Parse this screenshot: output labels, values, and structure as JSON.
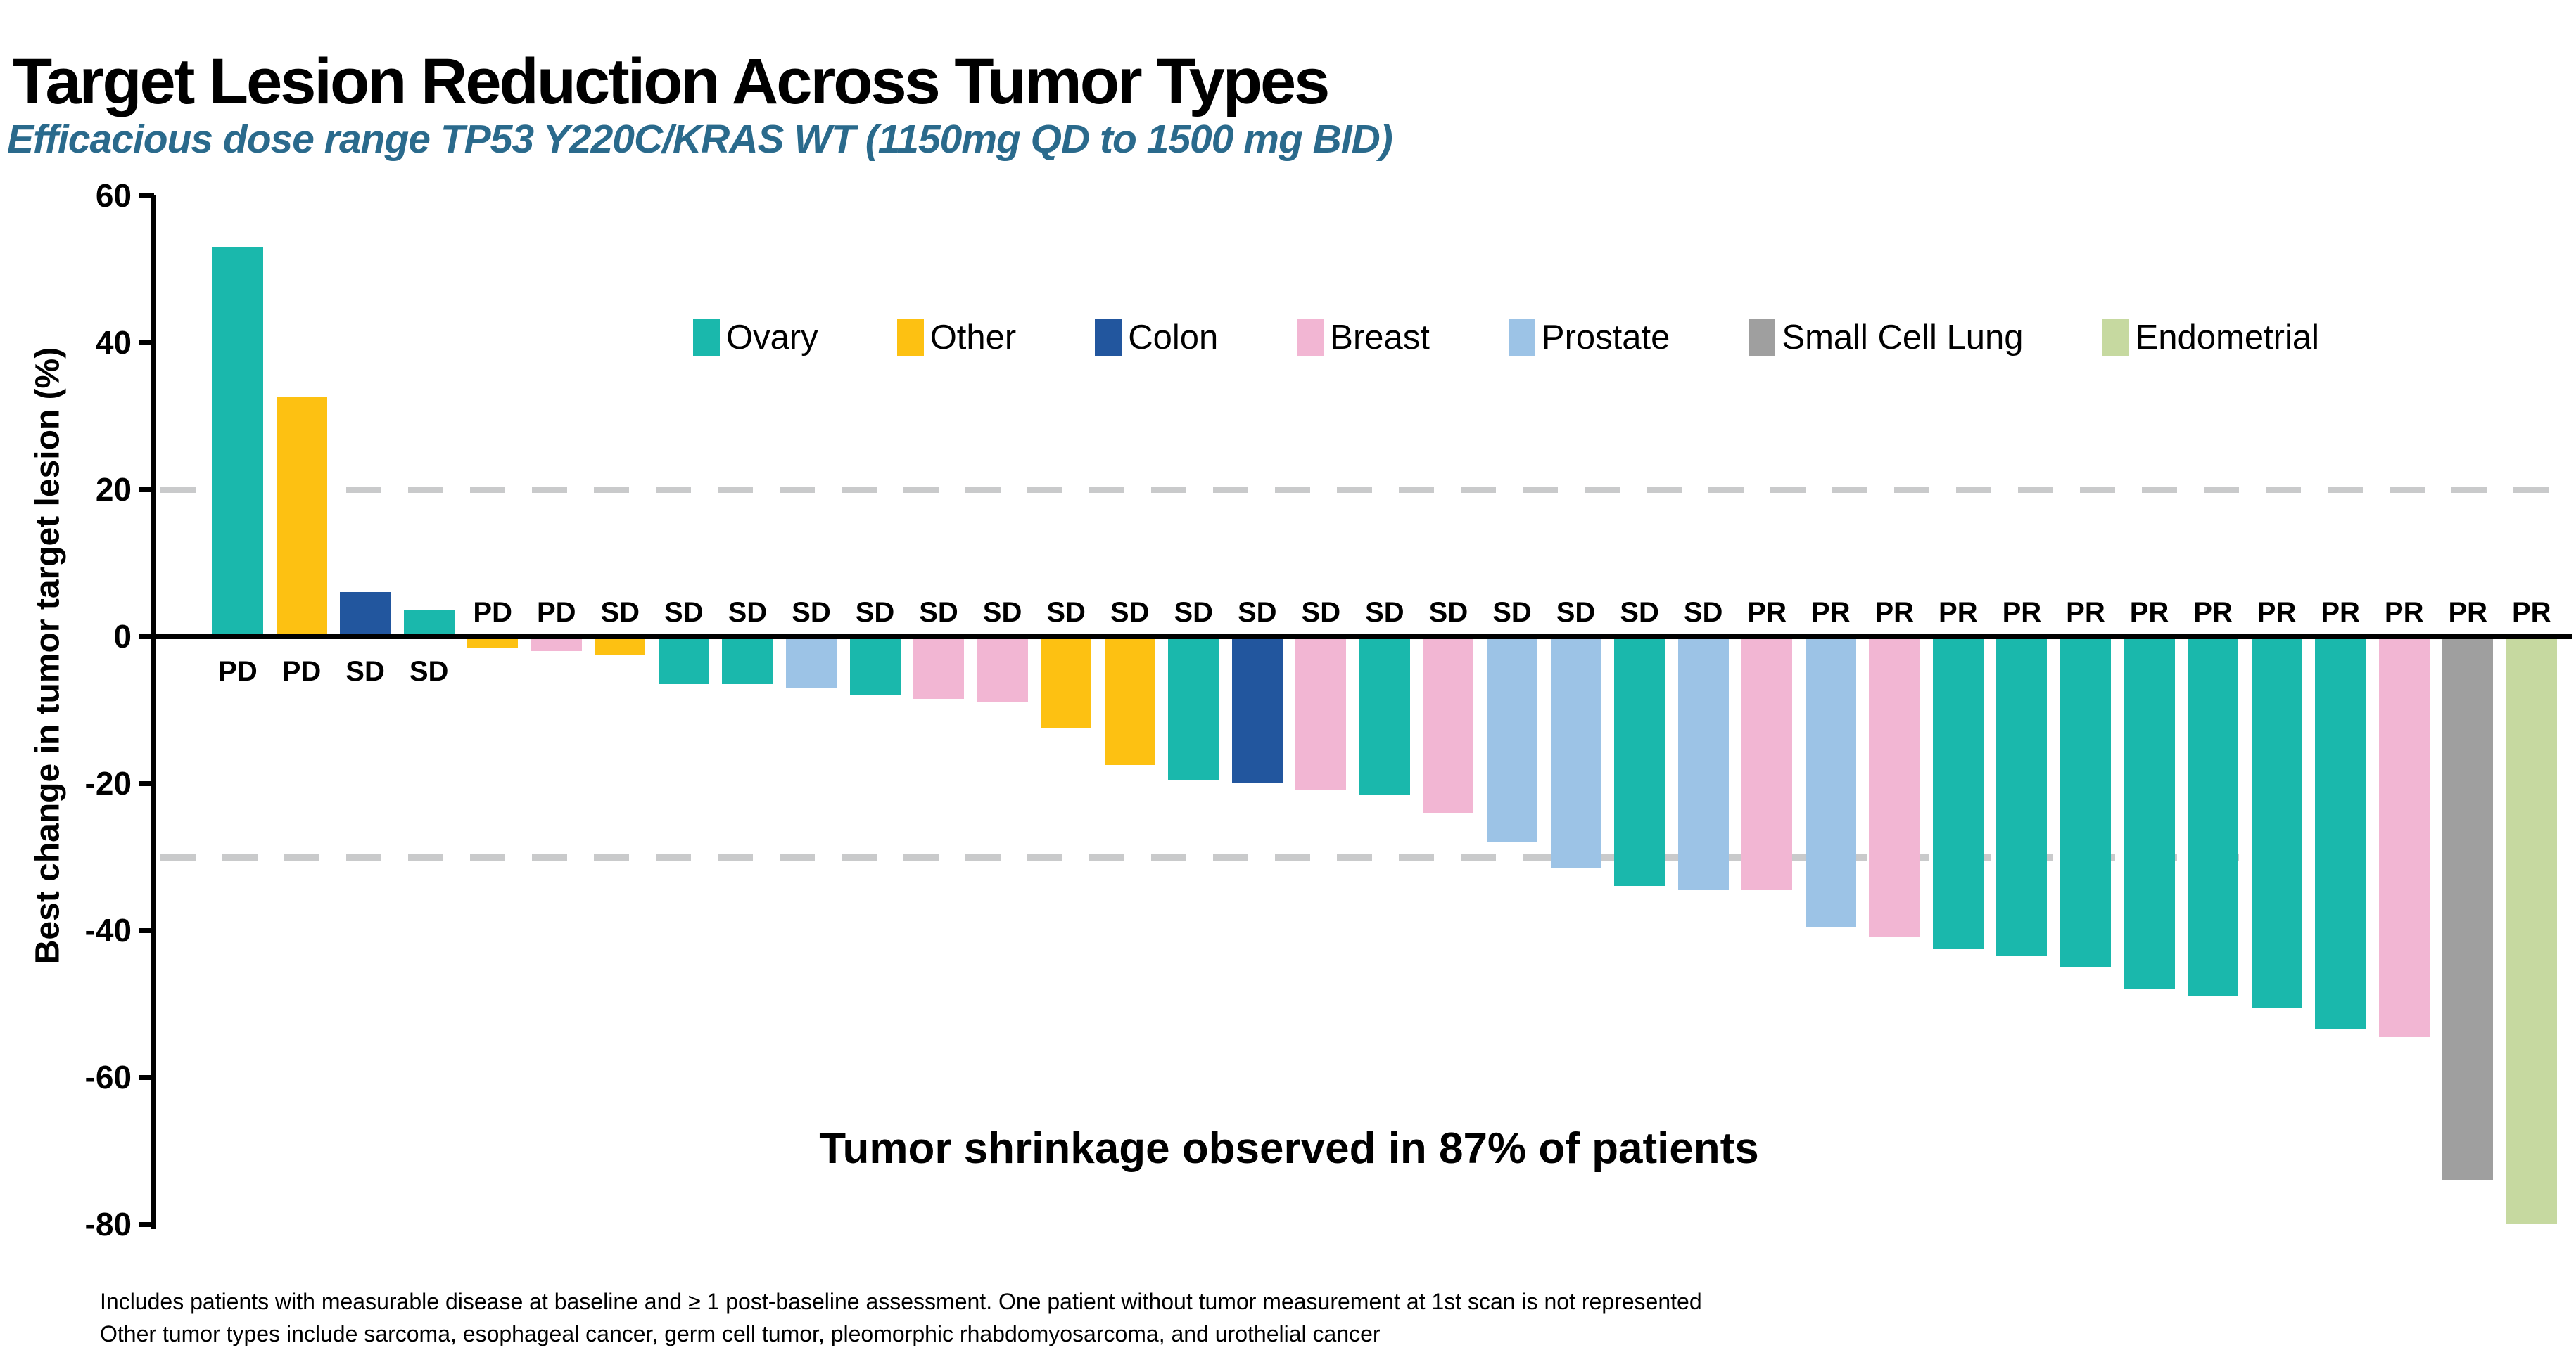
{
  "title": "Target Lesion Reduction Across Tumor Types",
  "subtitle": "Efficacious dose range TP53 Y220C/KRAS WT (1150mg QD to 1500 mg BID)",
  "subtitle_color": "#2a6a8c",
  "annotation": "Tumor shrinkage observed in 87% of patients",
  "footnotes": [
    "Includes patients with measurable disease at baseline and ≥ 1 post-baseline assessment. One patient without tumor measurement at 1st scan is not represented",
    "Other tumor types include sarcoma, esophageal cancer, germ cell tumor, pleomorphic rhabdomyosarcoma, and urothelial cancer"
  ],
  "colors": {
    "Ovary": "#1ab8ac",
    "Other": "#fdc112",
    "Colon": "#22569e",
    "Breast": "#f2b6d3",
    "Prostate": "#9cc3e6",
    "Small Cell Lung": "#9f9f9f",
    "Endometrial": "#c6d9a0",
    "gridline": "#c9cacb",
    "axis": "#000000"
  },
  "chart_data": {
    "type": "bar",
    "title": "Target Lesion Reduction Across Tumor Types",
    "xlabel": "",
    "ylabel": "Best change in tumor target lesion (%)",
    "ylim": [
      -80,
      60
    ],
    "yticks": [
      60,
      40,
      20,
      0,
      -20,
      -40,
      -60,
      -80
    ],
    "dashed_gridlines": [
      20,
      -30
    ],
    "grid": "dashed reference lines at +20 and -30 only",
    "legend_position": "top center inside plot",
    "legend": [
      "Ovary",
      "Other",
      "Colon",
      "Breast",
      "Prostate",
      "Small Cell Lung",
      "Endometrial"
    ],
    "points": [
      {
        "tumor": "Ovary",
        "response": "PD",
        "value": 53
      },
      {
        "tumor": "Other",
        "response": "PD",
        "value": 32.5
      },
      {
        "tumor": "Colon",
        "response": "SD",
        "value": 6
      },
      {
        "tumor": "Ovary",
        "response": "SD",
        "value": 3.5
      },
      {
        "tumor": "Other",
        "response": "PD",
        "value": -1.5
      },
      {
        "tumor": "Breast",
        "response": "PD",
        "value": -2
      },
      {
        "tumor": "Other",
        "response": "SD",
        "value": -2.5
      },
      {
        "tumor": "Ovary",
        "response": "SD",
        "value": -6.5
      },
      {
        "tumor": "Ovary",
        "response": "SD",
        "value": -6.5
      },
      {
        "tumor": "Prostate",
        "response": "SD",
        "value": -7
      },
      {
        "tumor": "Ovary",
        "response": "SD",
        "value": -8
      },
      {
        "tumor": "Breast",
        "response": "SD",
        "value": -8.5
      },
      {
        "tumor": "Breast",
        "response": "SD",
        "value": -9
      },
      {
        "tumor": "Other",
        "response": "SD",
        "value": -12.5
      },
      {
        "tumor": "Other",
        "response": "SD",
        "value": -17.5
      },
      {
        "tumor": "Ovary",
        "response": "SD",
        "value": -19.5
      },
      {
        "tumor": "Colon",
        "response": "SD",
        "value": -20
      },
      {
        "tumor": "Breast",
        "response": "SD",
        "value": -21
      },
      {
        "tumor": "Ovary",
        "response": "SD",
        "value": -21.5
      },
      {
        "tumor": "Breast",
        "response": "SD",
        "value": -24
      },
      {
        "tumor": "Prostate",
        "response": "SD",
        "value": -28
      },
      {
        "tumor": "Prostate",
        "response": "SD",
        "value": -31.5
      },
      {
        "tumor": "Ovary",
        "response": "SD",
        "value": -34
      },
      {
        "tumor": "Prostate",
        "response": "SD",
        "value": -34.5
      },
      {
        "tumor": "Breast",
        "response": "PR",
        "value": -34.5
      },
      {
        "tumor": "Prostate",
        "response": "PR",
        "value": -39.5
      },
      {
        "tumor": "Breast",
        "response": "PR",
        "value": -41
      },
      {
        "tumor": "Ovary",
        "response": "PR",
        "value": -42.5
      },
      {
        "tumor": "Ovary",
        "response": "PR",
        "value": -43.5
      },
      {
        "tumor": "Ovary",
        "response": "PR",
        "value": -45
      },
      {
        "tumor": "Ovary",
        "response": "PR",
        "value": -48
      },
      {
        "tumor": "Ovary",
        "response": "PR",
        "value": -49
      },
      {
        "tumor": "Ovary",
        "response": "PR",
        "value": -50.5
      },
      {
        "tumor": "Ovary",
        "response": "PR",
        "value": -53.5
      },
      {
        "tumor": "Breast",
        "response": "PR",
        "value": -54.5
      },
      {
        "tumor": "Small Cell Lung",
        "response": "PR",
        "value": -74
      },
      {
        "tumor": "Endometrial",
        "response": "PR",
        "value": -80
      }
    ]
  }
}
